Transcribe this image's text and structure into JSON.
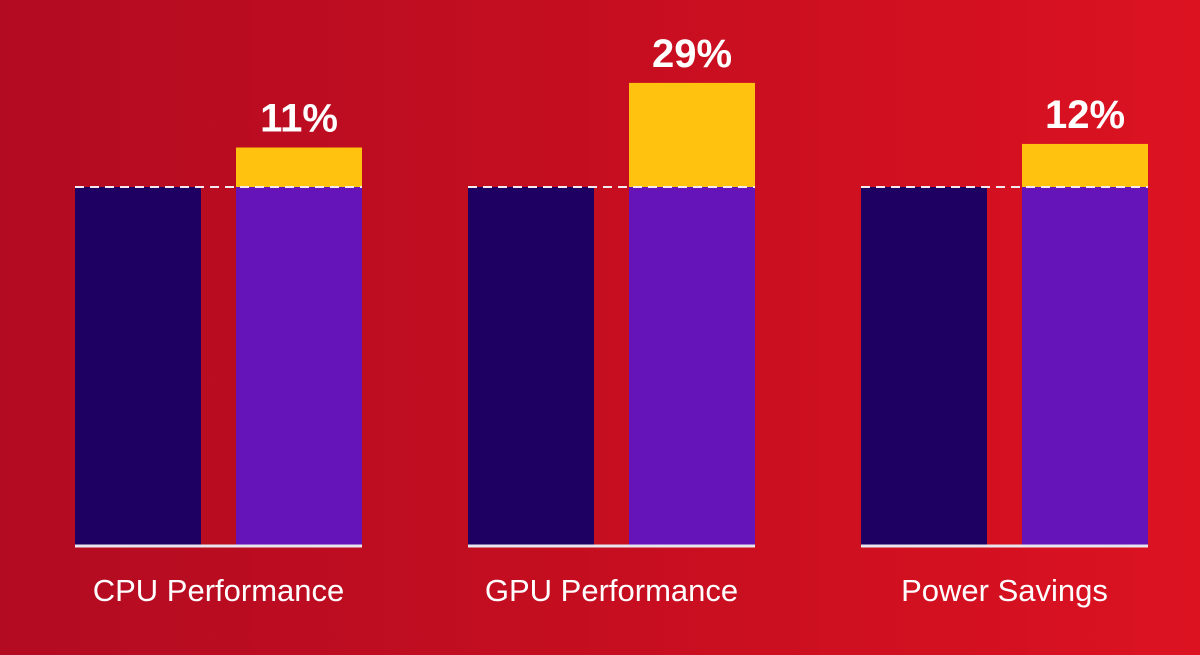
{
  "chart_data": {
    "type": "bar",
    "categories": [
      "CPU Performance",
      "GPU Performance",
      "Power Savings"
    ],
    "baseline": [
      100,
      100,
      100
    ],
    "improved": [
      111,
      129,
      112
    ],
    "improvement_labels": [
      "11%",
      "29%",
      "12%"
    ],
    "title": "",
    "xlabel": "",
    "ylabel": "",
    "ylim": [
      0,
      135
    ],
    "grid": false,
    "legend": "none",
    "colors": {
      "baseline": "#1e0062",
      "improved": "#6414b8",
      "gain": "#ffc20e",
      "reference_line": "#f2e9ef",
      "axis": "#e9e5ee",
      "text": "#ffffff"
    }
  }
}
